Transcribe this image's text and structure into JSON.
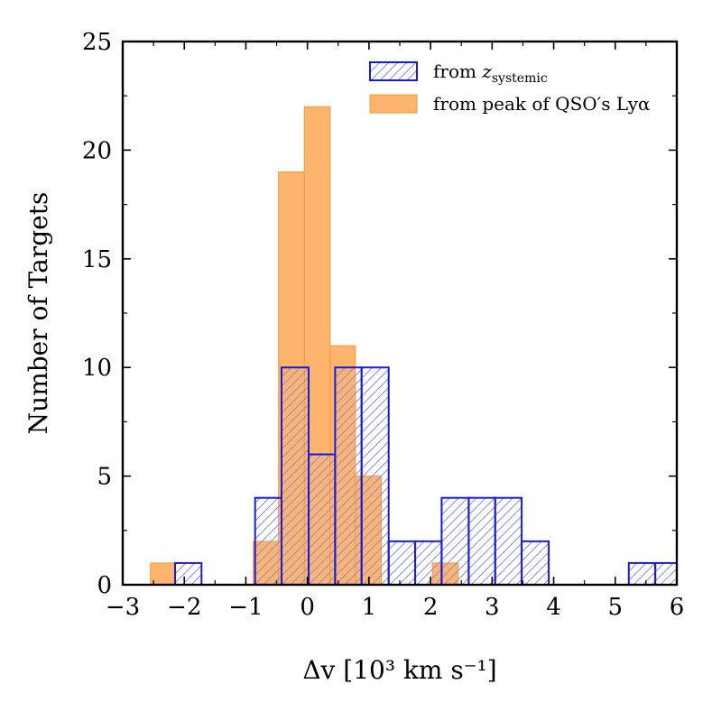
{
  "chart_data": {
    "type": "histogram",
    "xlabel": "Δv [10³ km s⁻¹]",
    "ylabel": "Number of Targets",
    "xlim": [
      -3,
      6
    ],
    "ylim": [
      0,
      25
    ],
    "xticks": [
      -3,
      -2,
      -1,
      0,
      1,
      2,
      3,
      4,
      5,
      6
    ],
    "xtick_labels": [
      "−3",
      "−2",
      "−1",
      "0",
      "1",
      "2",
      "3",
      "4",
      "5",
      "6"
    ],
    "yticks": [
      0,
      5,
      10,
      15,
      20,
      25
    ],
    "ytick_labels": [
      "0",
      "5",
      "10",
      "15",
      "20",
      "25"
    ],
    "legend_position": "top-right",
    "series": [
      {
        "name": "systemic",
        "label_prefix": "from ",
        "label_var": "z",
        "label_sub": "systemic",
        "style": "hatched",
        "edge_color": "#1a1adb",
        "hatch_color": "#8a8ae6",
        "bins": [
          {
            "x0": -2.15,
            "x1": -1.72,
            "count": 1
          },
          {
            "x0": -0.85,
            "x1": -0.42,
            "count": 4
          },
          {
            "x0": -0.42,
            "x1": 0.02,
            "count": 10
          },
          {
            "x0": 0.02,
            "x1": 0.45,
            "count": 6
          },
          {
            "x0": 0.45,
            "x1": 0.88,
            "count": 10
          },
          {
            "x0": 0.88,
            "x1": 1.32,
            "count": 10
          },
          {
            "x0": 1.32,
            "x1": 1.75,
            "count": 2
          },
          {
            "x0": 1.75,
            "x1": 2.18,
            "count": 2
          },
          {
            "x0": 2.18,
            "x1": 2.62,
            "count": 4
          },
          {
            "x0": 2.62,
            "x1": 3.05,
            "count": 4
          },
          {
            "x0": 3.05,
            "x1": 3.48,
            "count": 4
          },
          {
            "x0": 3.48,
            "x1": 3.92,
            "count": 2
          },
          {
            "x0": 5.22,
            "x1": 5.65,
            "count": 1
          },
          {
            "x0": 5.65,
            "x1": 6.08,
            "count": 1
          }
        ]
      },
      {
        "name": "lya_peak",
        "label": "from peak of QSO′s Lyα",
        "style": "filled",
        "fill_color": "#fdb56e",
        "edge_color": "#f59a3a",
        "bins": [
          {
            "x0": -2.55,
            "x1": -2.14,
            "count": 1
          },
          {
            "x0": -0.88,
            "x1": -0.47,
            "count": 2
          },
          {
            "x0": -0.47,
            "x1": -0.05,
            "count": 19
          },
          {
            "x0": -0.05,
            "x1": 0.37,
            "count": 22
          },
          {
            "x0": 0.37,
            "x1": 0.78,
            "count": 11
          },
          {
            "x0": 0.78,
            "x1": 1.2,
            "count": 5
          },
          {
            "x0": 2.03,
            "x1": 2.45,
            "count": 1
          }
        ]
      }
    ]
  }
}
